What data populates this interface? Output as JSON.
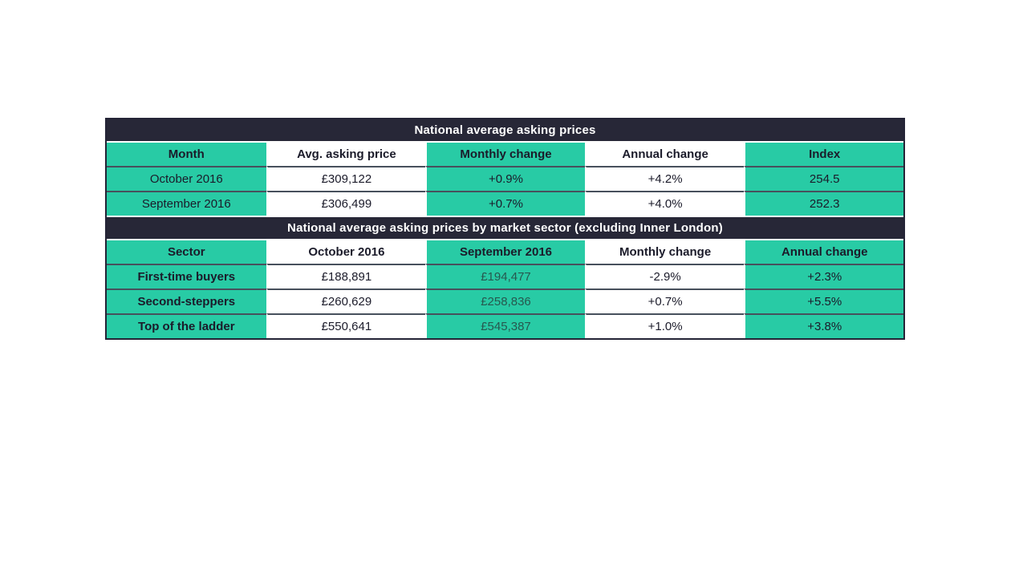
{
  "page": {
    "background": "#ffffff"
  },
  "colors": {
    "teal_cell": "#28cba5",
    "title_band": "#272737",
    "outer_border": "#242436",
    "row_divider": "#47505c",
    "column_divider": "#ffffff",
    "text_dark": "#1b1b2a",
    "text_muted_teal": "#27584f",
    "title_text": "#ffffff"
  },
  "table1": {
    "title": "National average asking prices",
    "columns": [
      "Month",
      "Avg. asking price",
      "Monthly change",
      "Annual change",
      "Index"
    ],
    "rows": [
      [
        "October 2016",
        "£309,122",
        "+0.9%",
        "+4.2%",
        "254.5"
      ],
      [
        "September 2016",
        "£306,499",
        "+0.7%",
        "+4.0%",
        "252.3"
      ]
    ]
  },
  "table2": {
    "title": "National average asking prices by market sector (excluding Inner London)",
    "columns": [
      "Sector",
      "October 2016",
      "September 2016",
      "Monthly change",
      "Annual change"
    ],
    "rows": [
      [
        "First-time buyers",
        "£188,891",
        "£194,477",
        "-2.9%",
        "+2.3%"
      ],
      [
        "Second-steppers",
        "£260,629",
        "£258,836",
        "+0.7%",
        "+5.5%"
      ],
      [
        "Top of the ladder",
        "£550,641",
        "£545,387",
        "+1.0%",
        "+3.8%"
      ]
    ]
  }
}
